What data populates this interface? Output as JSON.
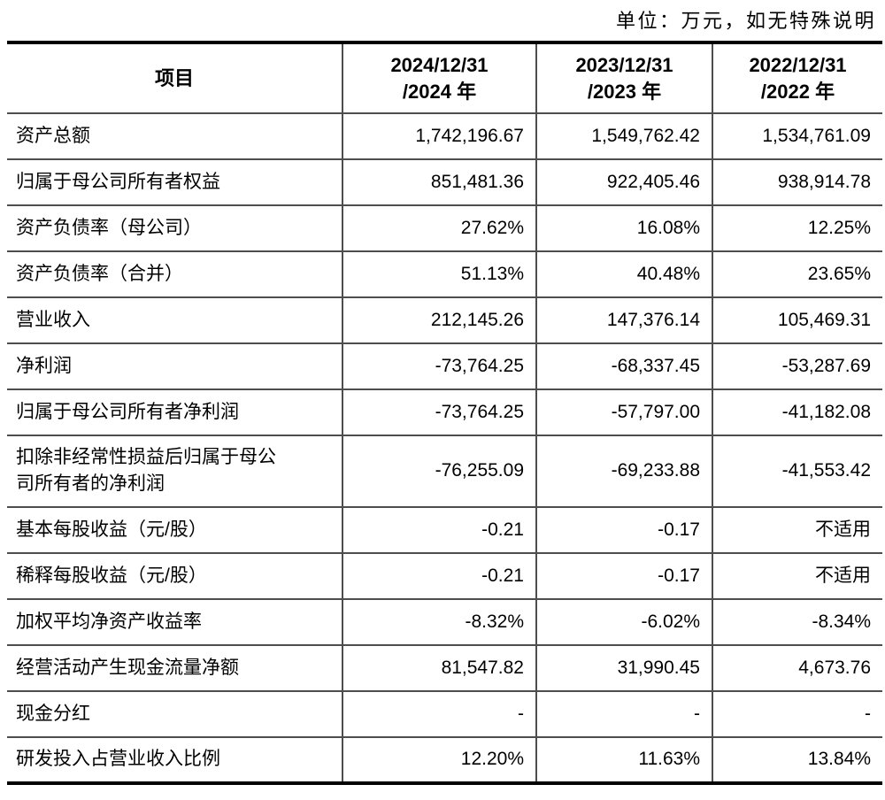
{
  "unit_note": "单位：万元，如无特殊说明",
  "table": {
    "header": {
      "item_label": "项目",
      "periods": [
        {
          "line1": "2024/12/31",
          "line2": "/2024 年"
        },
        {
          "line1": "2023/12/31",
          "line2": "/2023 年"
        },
        {
          "line1": "2022/12/31",
          "line2": "/2022 年"
        }
      ]
    },
    "rows": [
      {
        "label": "资产总额",
        "values": [
          "1,742,196.67",
          "1,549,762.42",
          "1,534,761.09"
        ]
      },
      {
        "label": "归属于母公司所有者权益",
        "values": [
          "851,481.36",
          "922,405.46",
          "938,914.78"
        ]
      },
      {
        "label": "资产负债率（母公司）",
        "values": [
          "27.62%",
          "16.08%",
          "12.25%"
        ]
      },
      {
        "label": "资产负债率（合并）",
        "values": [
          "51.13%",
          "40.48%",
          "23.65%"
        ]
      },
      {
        "label": "营业收入",
        "values": [
          "212,145.26",
          "147,376.14",
          "105,469.31"
        ]
      },
      {
        "label": "净利润",
        "values": [
          "-73,764.25",
          "-68,337.45",
          "-53,287.69"
        ]
      },
      {
        "label": "归属于母公司所有者净利润",
        "values": [
          "-73,764.25",
          "-57,797.00",
          "-41,182.08"
        ]
      },
      {
        "label": "扣除非经常性损益后归属于母公司所有者的净利润",
        "values": [
          "-76,255.09",
          "-69,233.88",
          "-41,553.42"
        ]
      },
      {
        "label": "基本每股收益（元/股）",
        "values": [
          "-0.21",
          "-0.17",
          "不适用"
        ]
      },
      {
        "label": "稀释每股收益（元/股）",
        "values": [
          "-0.21",
          "-0.17",
          "不适用"
        ]
      },
      {
        "label": "加权平均净资产收益率",
        "values": [
          "-8.32%",
          "-6.02%",
          "-8.34%"
        ]
      },
      {
        "label": "经营活动产生现金流量净额",
        "values": [
          "81,547.82",
          "31,990.45",
          "4,673.76"
        ]
      },
      {
        "label": "现金分红",
        "values": [
          "-",
          "-",
          "-"
        ]
      },
      {
        "label": "研发投入占营业收入比例",
        "values": [
          "12.20%",
          "11.63%",
          "13.84%"
        ]
      }
    ]
  }
}
